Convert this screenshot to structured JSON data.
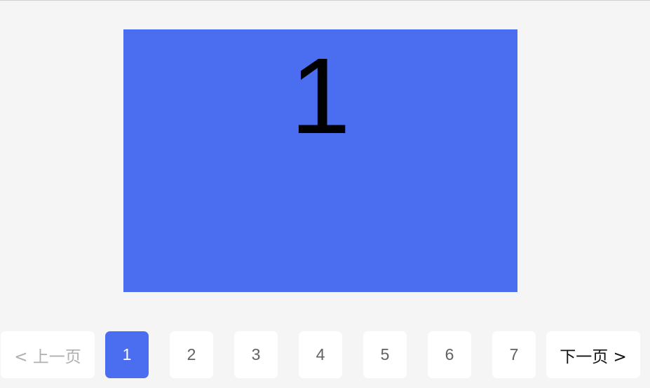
{
  "slide": {
    "number": "1",
    "color": "#4b6ef1"
  },
  "pagination": {
    "prev_label": "< 上一页",
    "next_label": "下一页 >",
    "pages": [
      "1",
      "2",
      "3",
      "4",
      "5",
      "6",
      "7"
    ],
    "current_page": "1",
    "accent_color": "#4b6ef1"
  }
}
